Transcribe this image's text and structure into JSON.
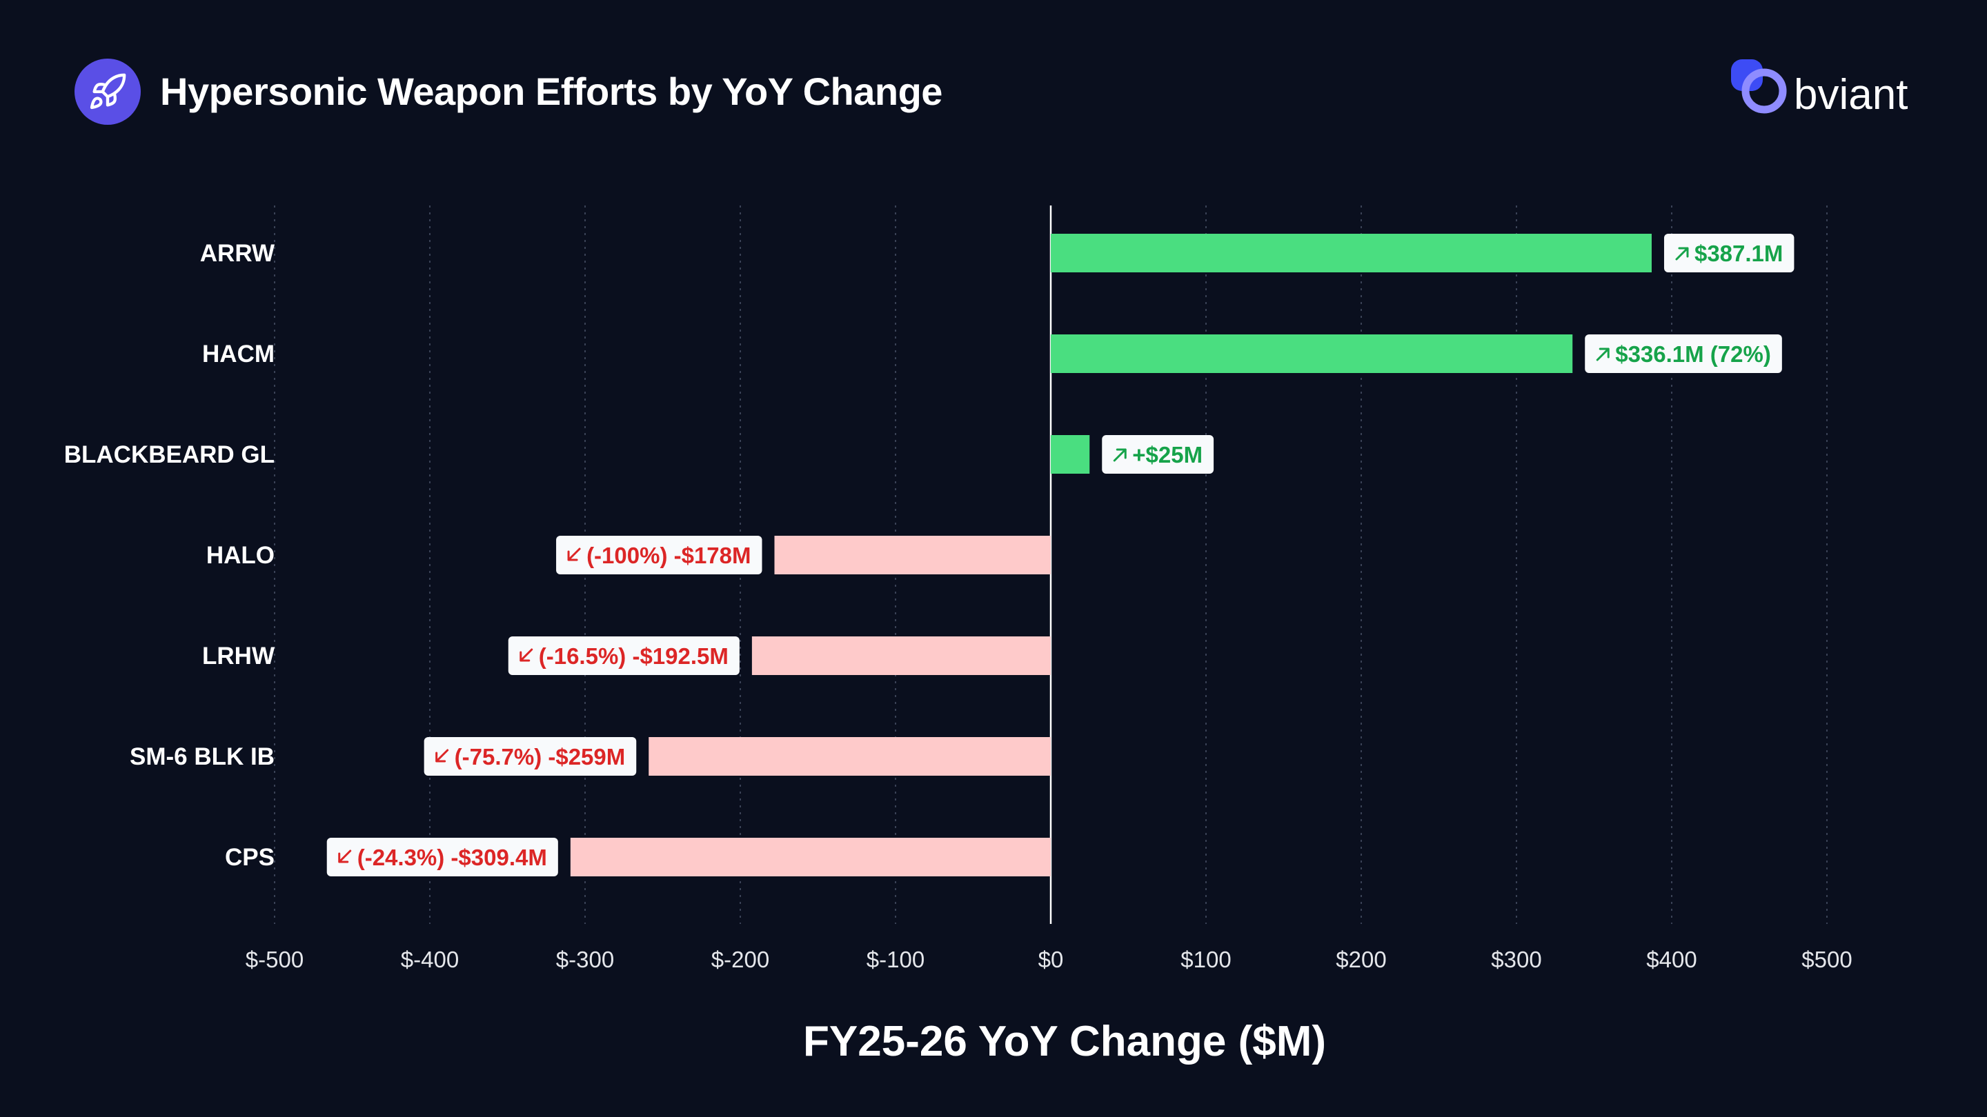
{
  "header": {
    "title": "Hypersonic Weapon Efforts by YoY Change",
    "icon": "rocket-icon",
    "icon_bg": "#5a4fe6"
  },
  "logo": {
    "text": "bviant",
    "accent": "#3d4cf5",
    "accent2": "#8f8cff"
  },
  "colors": {
    "background": "#0a0f1e",
    "positive_bar": "#4ade80",
    "positive_text": "#16a34a",
    "negative_bar": "#fecaca",
    "negative_text": "#dc2626",
    "label_bg": "#f8fafc",
    "grid": "#3a4256"
  },
  "chart_data": {
    "type": "bar",
    "orientation": "horizontal",
    "title": "Hypersonic Weapon Efforts by YoY Change",
    "xlabel": "FY25-26 YoY Change ($M)",
    "ylabel": "",
    "xlim": [
      -500,
      500
    ],
    "ticks": [
      -500,
      -400,
      -300,
      -200,
      -100,
      0,
      100,
      200,
      300,
      400,
      500
    ],
    "tick_labels": [
      "$-500",
      "$-400",
      "$-300",
      "$-200",
      "$-100",
      "$0",
      "$100",
      "$200",
      "$300",
      "$400",
      "$500"
    ],
    "grid": "vertical dotted",
    "categories": [
      "ARRW",
      "HACM",
      "BLACKBEARD GL",
      "HALO",
      "LRHW",
      "SM-6 BLK IB",
      "CPS"
    ],
    "values": [
      387.1,
      336.1,
      25,
      -178,
      -192.5,
      -259,
      -309.4
    ],
    "data_labels": [
      "$387.1M",
      "$336.1M (72%)",
      "+$25M",
      "(-100%) -$178M",
      "(-16.5%) -$192.5M",
      "(-75.7%) -$259M",
      "(-24.3%) -$309.4M"
    ]
  }
}
